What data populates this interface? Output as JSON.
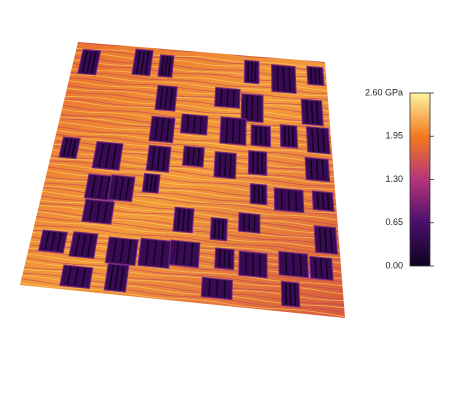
{
  "colorbar": {
    "range": [
      0,
      2.6
    ],
    "ticks": [
      {
        "value": 0,
        "label": "0.00"
      },
      {
        "value": 0.65,
        "label": "0.65"
      },
      {
        "value": 1.3,
        "label": "1.30"
      },
      {
        "value": 1.95,
        "label": "1.95"
      },
      {
        "value": 2.6,
        "label": "2.60 GPa"
      }
    ]
  }
}
